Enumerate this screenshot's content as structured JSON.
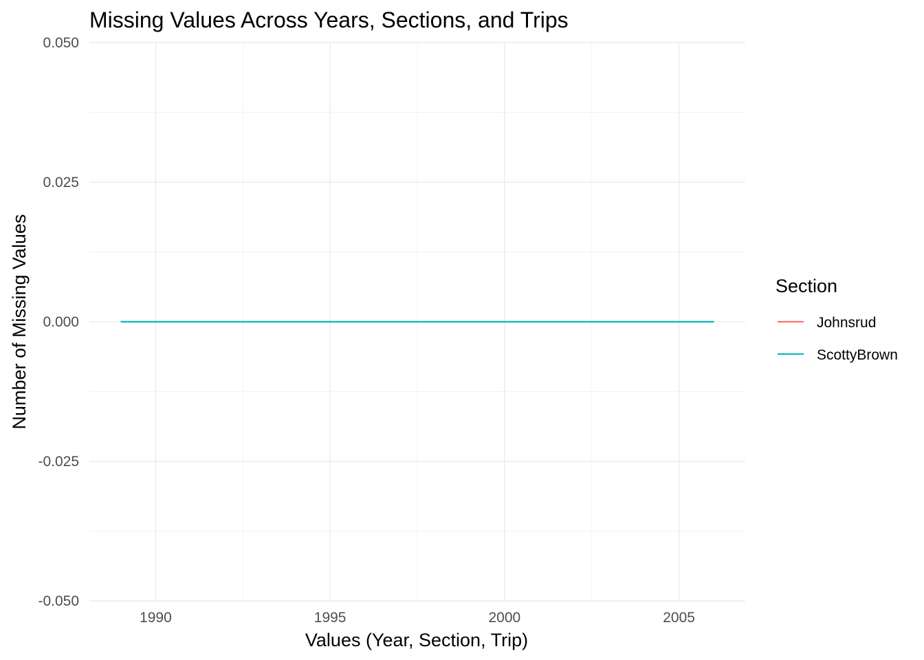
{
  "chart_data": {
    "type": "line",
    "title": "Missing Values Across Years, Sections, and Trips",
    "xlabel": "Values (Year, Section, Trip)",
    "ylabel": "Number of Missing Values",
    "xlim": [
      1988.1,
      2006.9
    ],
    "ylim": [
      -0.05,
      0.05
    ],
    "x_ticks": [
      1990,
      1995,
      2000,
      2005
    ],
    "x_tick_labels": [
      "1990",
      "1995",
      "2000",
      "2005"
    ],
    "y_ticks": [
      -0.05,
      -0.025,
      0,
      0.025,
      0.05
    ],
    "y_tick_labels": [
      "-0.050",
      "-0.025",
      "0.000",
      "0.025",
      "0.050"
    ],
    "grid": true,
    "legend": {
      "title": "Section",
      "position": "right"
    },
    "series": [
      {
        "name": "Johnsrud",
        "color": "#F8766D",
        "x": [
          1989,
          2006
        ],
        "y": [
          0,
          0
        ]
      },
      {
        "name": "ScottyBrown",
        "color": "#00BFC4",
        "x": [
          1989,
          2006
        ],
        "y": [
          0,
          0
        ]
      }
    ]
  }
}
